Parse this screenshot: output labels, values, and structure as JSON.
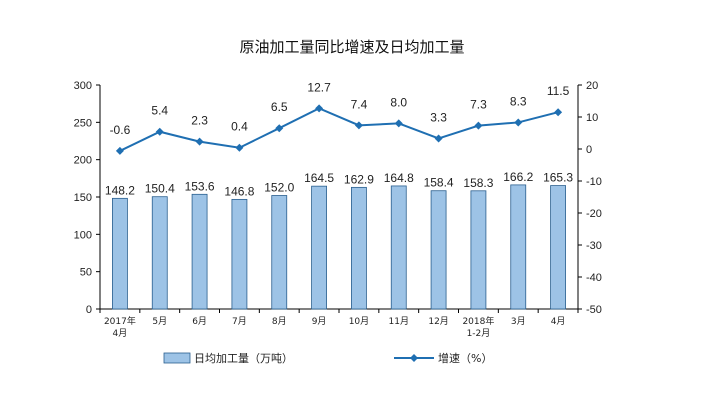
{
  "chart_data": {
    "type": "bar+line",
    "title": "原油加工量同比增速及日均加工量",
    "categories": [
      [
        "2017年",
        "4月"
      ],
      [
        "5月"
      ],
      [
        "6月"
      ],
      [
        "7月"
      ],
      [
        "8月"
      ],
      [
        "9月"
      ],
      [
        "10月"
      ],
      [
        "11月"
      ],
      [
        "12月"
      ],
      [
        "2018年",
        "1-2月"
      ],
      [
        "3月"
      ],
      [
        "4月"
      ]
    ],
    "series": [
      {
        "name": "日均加工量（万吨）",
        "type": "bar",
        "axis": "left",
        "values": [
          148.2,
          150.4,
          153.6,
          146.8,
          152.0,
          164.5,
          162.9,
          164.8,
          158.4,
          158.3,
          166.2,
          165.3
        ],
        "labels": [
          "148.2",
          "150.4",
          "153.6",
          "146.8",
          "152.0",
          "164.5",
          "162.9",
          "164.8",
          "158.4",
          "158.3",
          "166.2",
          "165.3"
        ],
        "color": "#9dc3e6"
      },
      {
        "name": "增速（%）",
        "type": "line",
        "axis": "right",
        "values": [
          -0.6,
          5.4,
          2.3,
          0.4,
          6.5,
          12.7,
          7.4,
          8.0,
          3.3,
          7.3,
          8.3,
          11.5
        ],
        "labels": [
          "-0.6",
          "5.4",
          "2.3",
          "0.4",
          "6.5",
          "12.7",
          "7.4",
          "8.0",
          "3.3",
          "7.3",
          "8.3",
          "11.5"
        ],
        "color": "#1f6fb2"
      }
    ],
    "y_left": {
      "min": 0,
      "max": 300,
      "step": 50,
      "ticks": [
        "0",
        "50",
        "100",
        "150",
        "200",
        "250",
        "300"
      ]
    },
    "y_right": {
      "min": -50,
      "max": 20,
      "step": 10,
      "ticks": [
        "-50",
        "-40",
        "-30",
        "-20",
        "-10",
        "0",
        "10",
        "20"
      ]
    },
    "grid": false,
    "legend_position": "bottom"
  }
}
